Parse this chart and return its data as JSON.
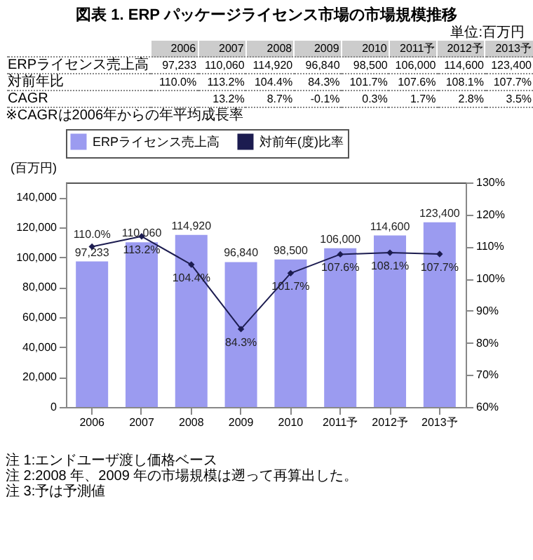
{
  "chart_data": {
    "type": "bar",
    "title": "図表 1.  ERP パッケージライセンス市場の市場規模推移",
    "categories": [
      "2006",
      "2007",
      "2008",
      "2009",
      "2010",
      "2011予",
      "2012予",
      "2013予"
    ],
    "series": [
      {
        "name": "ERPライセンス売上高",
        "color": "#9b9bf0",
        "values": [
          97233,
          110060,
          114920,
          96840,
          98500,
          106000,
          114600,
          123400
        ],
        "value_labels": [
          "97,233",
          "110,060",
          "114,920",
          "96,840",
          "98,500",
          "106,000",
          "114,600",
          "123,400"
        ]
      },
      {
        "name": "対前年(度)比率",
        "type": "line",
        "axis": "y2",
        "color": "#1c1c50",
        "values": [
          110.0,
          113.2,
          104.4,
          84.3,
          101.7,
          107.6,
          108.1,
          107.7
        ],
        "value_labels": [
          "110.0%",
          "113.2%",
          "104.4%",
          "84.3%",
          "101.7%",
          "107.6%",
          "108.1%",
          "107.7%"
        ]
      }
    ],
    "ylabel": "(百万円)",
    "ylim": [
      0,
      150000
    ],
    "yticks": [
      {
        "value": 0,
        "label": "0"
      },
      {
        "value": 20000,
        "label": "20,000"
      },
      {
        "value": 40000,
        "label": "40,000"
      },
      {
        "value": 60000,
        "label": "60,000"
      },
      {
        "value": 80000,
        "label": "80,000"
      },
      {
        "value": 100000,
        "label": "100,000"
      },
      {
        "value": 120000,
        "label": "120,000"
      },
      {
        "value": 140000,
        "label": "140,000"
      }
    ],
    "y2lim": [
      60,
      130
    ],
    "y2ticks": [
      {
        "value": 60,
        "label": "60%"
      },
      {
        "value": 70,
        "label": "70%"
      },
      {
        "value": 80,
        "label": "80%"
      },
      {
        "value": 90,
        "label": "90%"
      },
      {
        "value": 100,
        "label": "100%"
      },
      {
        "value": 110,
        "label": "110%"
      },
      {
        "value": 120,
        "label": "120%"
      },
      {
        "value": 130,
        "label": "130%"
      }
    ],
    "marker": "diamond",
    "legend": "top",
    "annotations": [
      "単位:百万円",
      "対前年比",
      "CAGR",
      "13.2%",
      "8.7%",
      "-0.1%",
      "0.3%",
      "1.7%",
      "2.8%",
      "3.5%",
      "※CAGRは2006年からの年平均成長率",
      "注 1:エンドユーザ渡し価格ベース",
      "注 2:2008 年、2009 年の市場規模は遡って再算出した。",
      "注 3:予は予測値"
    ]
  }
}
